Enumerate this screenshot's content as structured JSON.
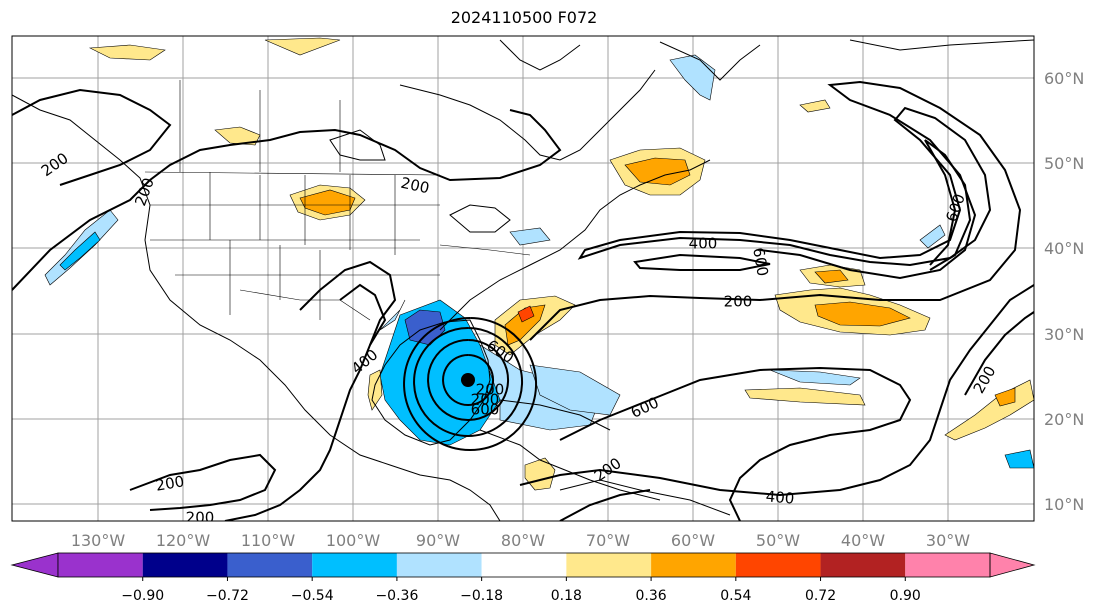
{
  "title": "2024110500 F072",
  "map": {
    "lat_labels": [
      "60°N",
      "50°N",
      "40°N",
      "30°N",
      "20°N",
      "10°N"
    ],
    "lon_labels": [
      "130°W",
      "120°W",
      "110°W",
      "100°W",
      "90°W",
      "80°W",
      "70°W",
      "60°W",
      "50°W",
      "40°W",
      "30°W"
    ],
    "contour_labels": [
      "200",
      "200",
      "200",
      "400",
      "600",
      "600",
      "200",
      "400",
      "200",
      "600",
      "600",
      "200",
      "200",
      "200",
      "400",
      "200",
      "200",
      "600"
    ]
  },
  "colorbar": {
    "colors": [
      "#9a32cd",
      "#00008b",
      "#3a5fcd",
      "#00bfff",
      "#b0e2ff",
      "#ffffff",
      "#ffe88c",
      "#ffa500",
      "#ff4500",
      "#b22222",
      "#ff82ab"
    ],
    "under_color": "#9a32cd",
    "over_color": "#ff82ab",
    "tick_labels": [
      "−0.90",
      "−0.72",
      "−0.54",
      "−0.36",
      "−0.18",
      "0.18",
      "0.36",
      "0.54",
      "0.72",
      "0.90"
    ]
  }
}
